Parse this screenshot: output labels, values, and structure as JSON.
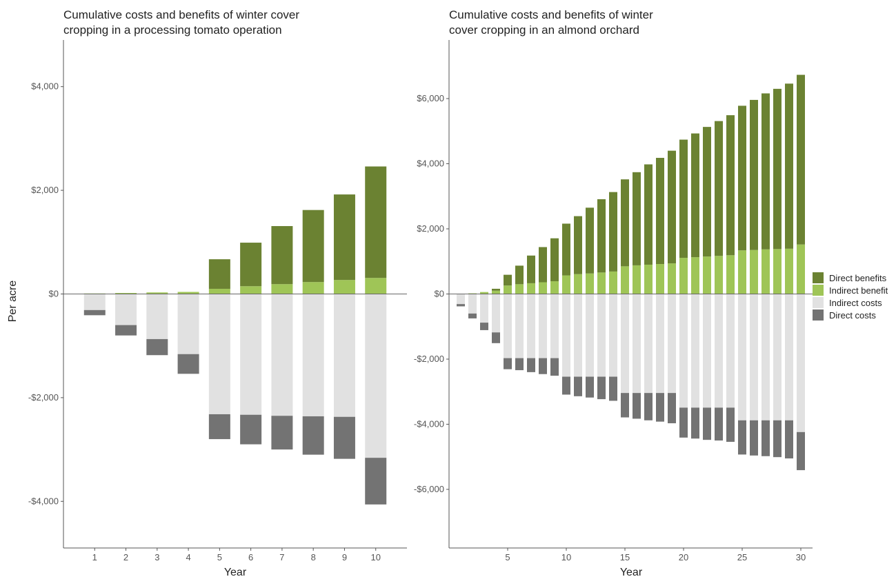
{
  "colors": {
    "direct_benefits": "#6b8232",
    "indirect_benefit": "#9fc557",
    "indirect_costs": "#e1e1e1",
    "direct_costs": "#737373"
  },
  "chart_data": [
    {
      "type": "bar",
      "stacked": true,
      "title": [
        "Cumulative costs and benefits of winter cover",
        "cropping in a processing tomato operation"
      ],
      "xlabel": "Year",
      "ylabel": "Per acre",
      "ylim": [
        -4900,
        4900
      ],
      "yticks": [
        -4000,
        -2000,
        0,
        2000,
        4000
      ],
      "ytick_labels": [
        "-$4,000",
        "-$2,000",
        "$0",
        "$2,000",
        "$4,000"
      ],
      "xlim": [
        0,
        11
      ],
      "xticks": [
        1,
        2,
        3,
        4,
        5,
        6,
        7,
        8,
        9,
        10
      ],
      "xtick_labels": [
        "1",
        "2",
        "3",
        "4",
        "5",
        "6",
        "7",
        "8",
        "9",
        "10"
      ],
      "categories": [
        1,
        2,
        3,
        4,
        5,
        6,
        7,
        8,
        9,
        10
      ],
      "series": [
        {
          "name": "Indirect benefit",
          "values": [
            10,
            20,
            30,
            40,
            100,
            150,
            190,
            230,
            270,
            310
          ]
        },
        {
          "name": "Direct benefits",
          "values": [
            0,
            0,
            0,
            0,
            570,
            840,
            1120,
            1390,
            1650,
            2150
          ]
        },
        {
          "name": "Indirect costs",
          "values": [
            -310,
            -600,
            -870,
            -1160,
            -2320,
            -2330,
            -2350,
            -2360,
            -2370,
            -3160
          ]
        },
        {
          "name": "Direct costs",
          "values": [
            -100,
            -200,
            -310,
            -380,
            -480,
            -570,
            -650,
            -740,
            -810,
            -900
          ]
        }
      ]
    },
    {
      "type": "bar",
      "stacked": true,
      "title": [
        "Cumulative costs and benefits of winter",
        "cover cropping in an almond orchard"
      ],
      "xlabel": "Year",
      "ylabel": "",
      "ylim": [
        -7800,
        7800
      ],
      "yticks": [
        -6000,
        -4000,
        -2000,
        0,
        2000,
        4000,
        6000
      ],
      "ytick_labels": [
        "-$6,000",
        "-$4,000",
        "-$2,000",
        "$0",
        "$2,000",
        "$4,000",
        "$6,000"
      ],
      "xlim": [
        0,
        31
      ],
      "xticks": [
        5,
        10,
        15,
        20,
        25,
        30
      ],
      "xtick_labels": [
        "5",
        "10",
        "15",
        "20",
        "25",
        "30"
      ],
      "categories": [
        1,
        2,
        3,
        4,
        5,
        6,
        7,
        8,
        9,
        10,
        11,
        12,
        13,
        14,
        15,
        16,
        17,
        18,
        19,
        20,
        21,
        22,
        23,
        24,
        25,
        26,
        27,
        28,
        29,
        30
      ],
      "series": [
        {
          "name": "Indirect benefit",
          "values": [
            0,
            20,
            60,
            100,
            260,
            300,
            330,
            360,
            390,
            570,
            610,
            630,
            660,
            690,
            850,
            880,
            900,
            920,
            940,
            1110,
            1130,
            1150,
            1170,
            1190,
            1340,
            1350,
            1370,
            1380,
            1390,
            1520
          ]
        },
        {
          "name": "Direct benefits",
          "values": [
            0,
            0,
            0,
            60,
            330,
            570,
            850,
            1080,
            1320,
            1590,
            1780,
            2020,
            2250,
            2440,
            2670,
            2860,
            3080,
            3260,
            3460,
            3630,
            3800,
            3980,
            4140,
            4300,
            4440,
            4610,
            4790,
            4920,
            5070,
            5210
          ]
        },
        {
          "name": "Indirect costs",
          "values": [
            -310,
            -600,
            -880,
            -1180,
            -1970,
            -1970,
            -1970,
            -1970,
            -1970,
            -2540,
            -2540,
            -2540,
            -2540,
            -2540,
            -3040,
            -3040,
            -3040,
            -3040,
            -3040,
            -3490,
            -3490,
            -3490,
            -3490,
            -3490,
            -3880,
            -3880,
            -3880,
            -3880,
            -3880,
            -4240
          ]
        },
        {
          "name": "Direct costs",
          "values": [
            -70,
            -150,
            -230,
            -330,
            -340,
            -370,
            -430,
            -490,
            -540,
            -550,
            -600,
            -640,
            -690,
            -740,
            -750,
            -790,
            -840,
            -880,
            -930,
            -920,
            -950,
            -990,
            -1010,
            -1050,
            -1050,
            -1080,
            -1100,
            -1130,
            -1170,
            -1170
          ]
        }
      ],
      "legend": {
        "placement": "right",
        "entries": [
          {
            "label": "Direct benefits",
            "color": "#6b8232"
          },
          {
            "label": "Indirect benefit",
            "color": "#9fc557"
          },
          {
            "label": "Indirect costs",
            "color": "#e1e1e1"
          },
          {
            "label": "Direct costs",
            "color": "#737373"
          }
        ]
      }
    }
  ]
}
